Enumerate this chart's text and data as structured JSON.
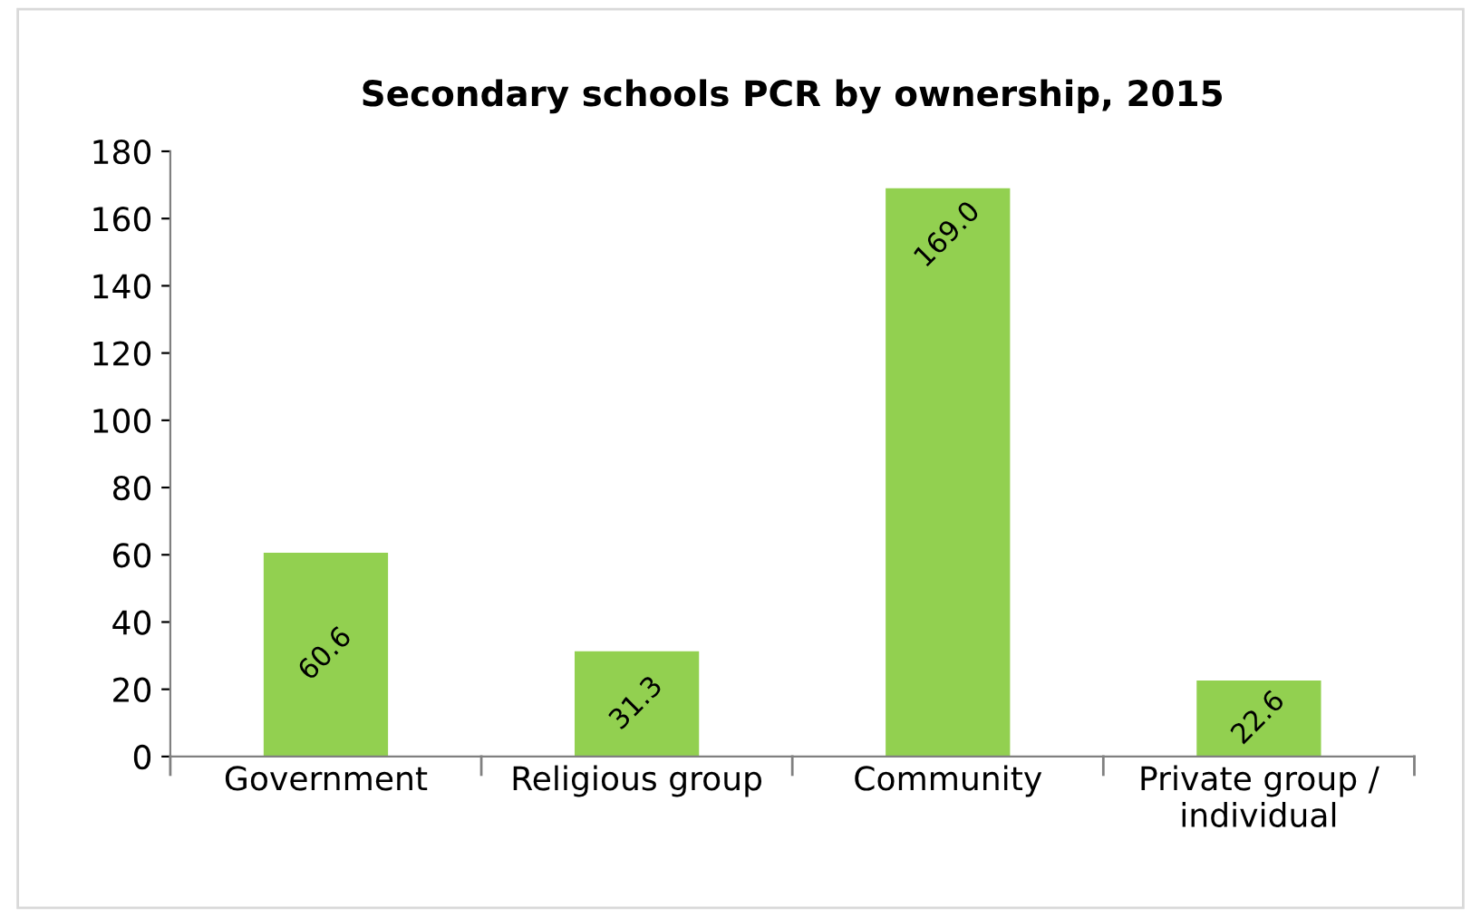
{
  "chart_data": {
    "type": "bar",
    "title": "Secondary schools PCR by ownership, 2015",
    "categories": [
      "Government",
      "Religious group",
      "Community",
      "Private group /\nindividual"
    ],
    "values": [
      60.6,
      31.3,
      169.0,
      22.6
    ],
    "color": "#92d050",
    "value_labels": [
      "60.6",
      "31.3",
      "169.0",
      "22.6"
    ],
    "ylim": [
      0,
      180
    ],
    "yticks": [
      0,
      20,
      40,
      60,
      80,
      100,
      120,
      140,
      160,
      180
    ],
    "grid": false
  }
}
